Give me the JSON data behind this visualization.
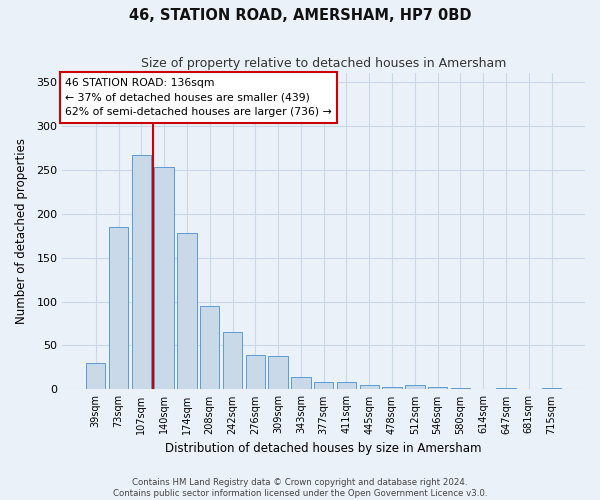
{
  "title": "46, STATION ROAD, AMERSHAM, HP7 0BD",
  "subtitle": "Size of property relative to detached houses in Amersham",
  "xlabel": "Distribution of detached houses by size in Amersham",
  "ylabel": "Number of detached properties",
  "categories": [
    "39sqm",
    "73sqm",
    "107sqm",
    "140sqm",
    "174sqm",
    "208sqm",
    "242sqm",
    "276sqm",
    "309sqm",
    "343sqm",
    "377sqm",
    "411sqm",
    "445sqm",
    "478sqm",
    "512sqm",
    "546sqm",
    "580sqm",
    "614sqm",
    "647sqm",
    "681sqm",
    "715sqm"
  ],
  "values": [
    30,
    185,
    267,
    253,
    178,
    95,
    65,
    39,
    38,
    14,
    9,
    8,
    5,
    3,
    5,
    3,
    2,
    0,
    2,
    0,
    2
  ],
  "bar_color": "#c9d9e8",
  "bar_edge_color": "#5b9bd5",
  "annotation_line1": "46 STATION ROAD: 136sqm",
  "annotation_line2": "← 37% of detached houses are smaller (439)",
  "annotation_line3": "62% of semi-detached houses are larger (736) →",
  "annotation_box_color": "#ffffff",
  "annotation_box_edge_color": "#cc0000",
  "vline_color": "#cc0000",
  "vline_x_index": 2.5,
  "ylim": [
    0,
    360
  ],
  "yticks": [
    0,
    50,
    100,
    150,
    200,
    250,
    300,
    350
  ],
  "grid_color": "#c8d8e8",
  "background_color": "#eaf1f8",
  "footer_line1": "Contains HM Land Registry data © Crown copyright and database right 2024.",
  "footer_line2": "Contains public sector information licensed under the Open Government Licence v3.0."
}
